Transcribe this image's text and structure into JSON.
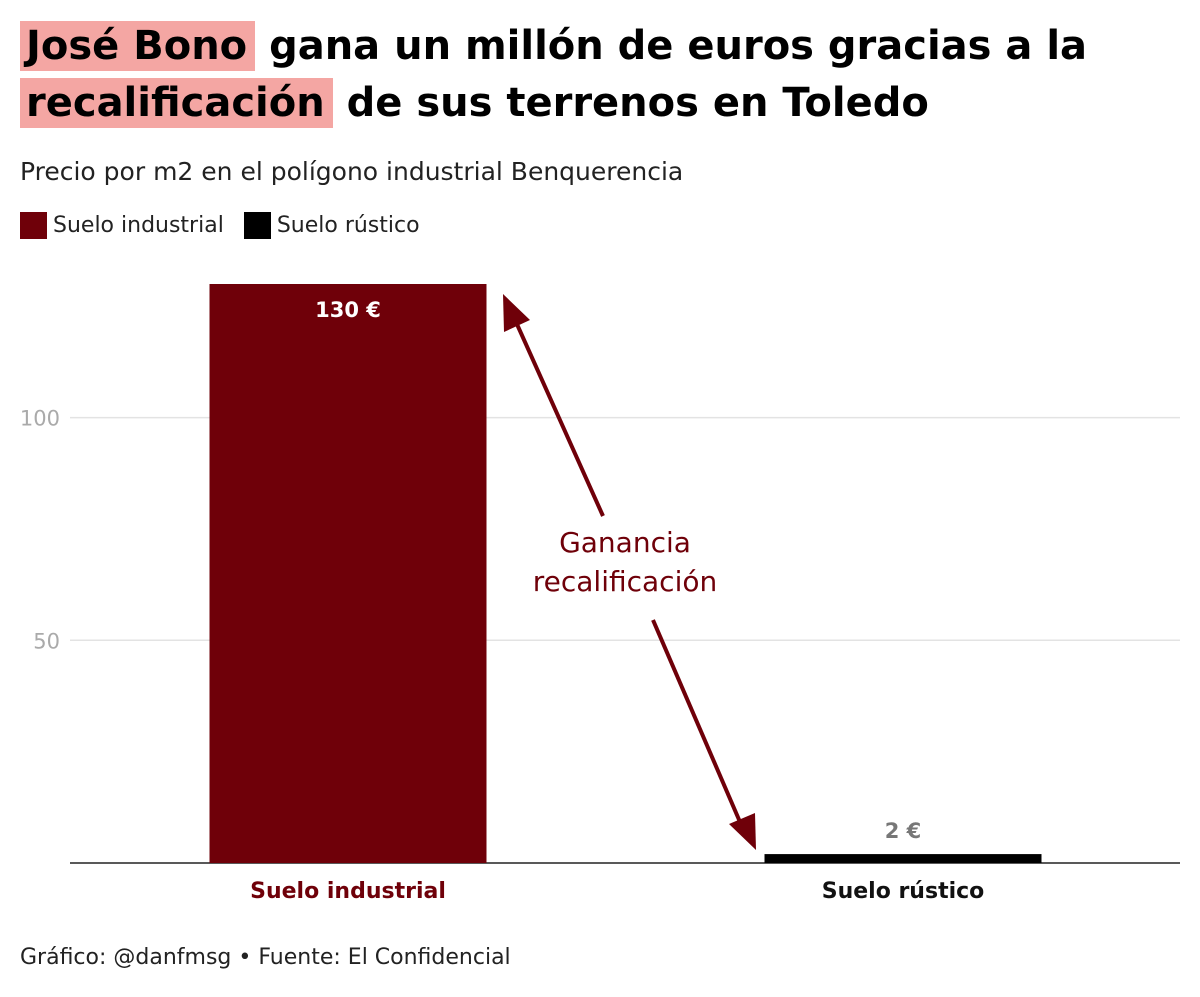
{
  "title": {
    "highlight_1": "José Bono",
    "part_1": " gana un millón de euros gracias a la ",
    "highlight_2": "recalificación",
    "part_2": " de sus terrenos en Toledo"
  },
  "subtitle": "Precio por m2 en el polígono industrial Benquerencia",
  "legend": [
    {
      "label": "Suelo industrial",
      "color": "#6f0009"
    },
    {
      "label": "Suelo rústico",
      "color": "#000000"
    }
  ],
  "credit": "Gráfico: @danfmsg • Fuente: El Confidencial",
  "colors": {
    "highlight": "#f4a6a3",
    "industrial": "#6f0009",
    "rustico": "#000000",
    "grid": "#e3e3e3",
    "tick": "#aaaaaa",
    "rustico_label": "#777777"
  },
  "chart_data": {
    "type": "bar",
    "categories": [
      "Suelo industrial",
      "Suelo rústico"
    ],
    "values": [
      130,
      2
    ],
    "value_labels": [
      "130 €",
      "2 €"
    ],
    "yticks": [
      50,
      100
    ],
    "ylim": [
      0,
      130
    ],
    "annotation": {
      "line1": "Ganancia",
      "line2": "recalificación"
    }
  }
}
